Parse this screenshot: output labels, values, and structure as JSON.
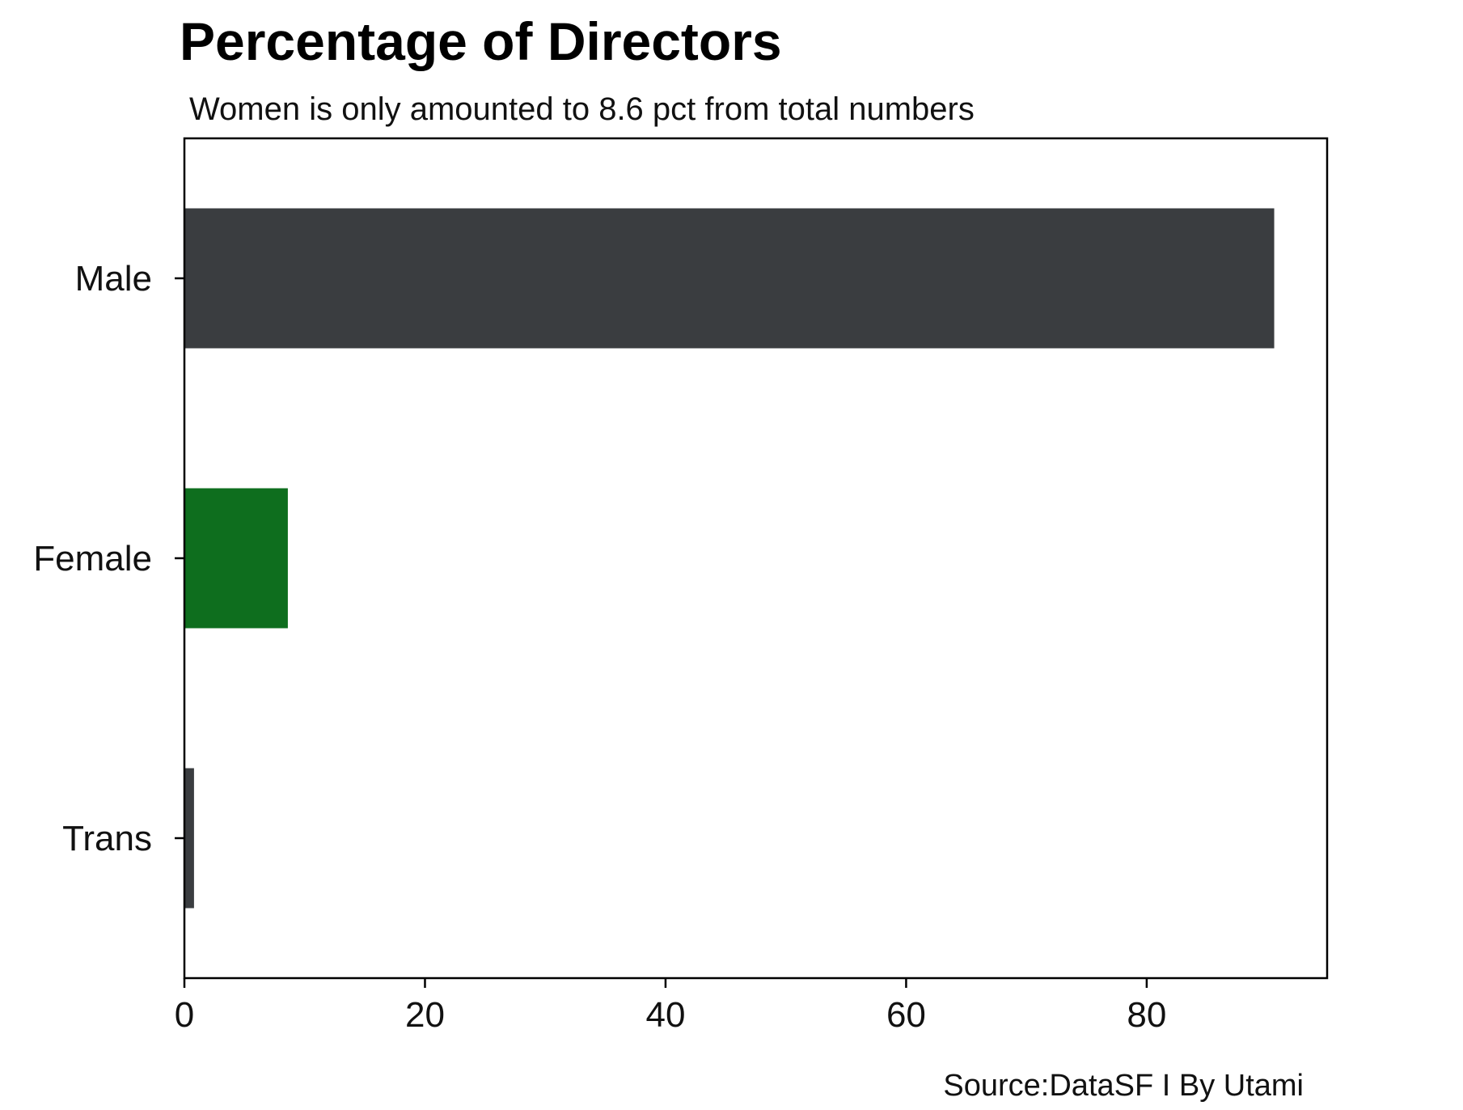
{
  "chart_data": {
    "type": "bar",
    "orientation": "horizontal",
    "title": "Percentage of Directors",
    "subtitle": "Women is only amounted to 8.6 pct from total numbers",
    "categories": [
      "Male",
      "Female",
      "Trans"
    ],
    "values": [
      90.6,
      8.6,
      0.8
    ],
    "colors": [
      "#3a3d40",
      "#0e6e1e",
      "#3a3d40"
    ],
    "xticks": [
      0,
      20,
      40,
      60,
      80
    ],
    "xlim": [
      0,
      95
    ],
    "grid": false,
    "source": "Source:DataSF I By Utami"
  }
}
